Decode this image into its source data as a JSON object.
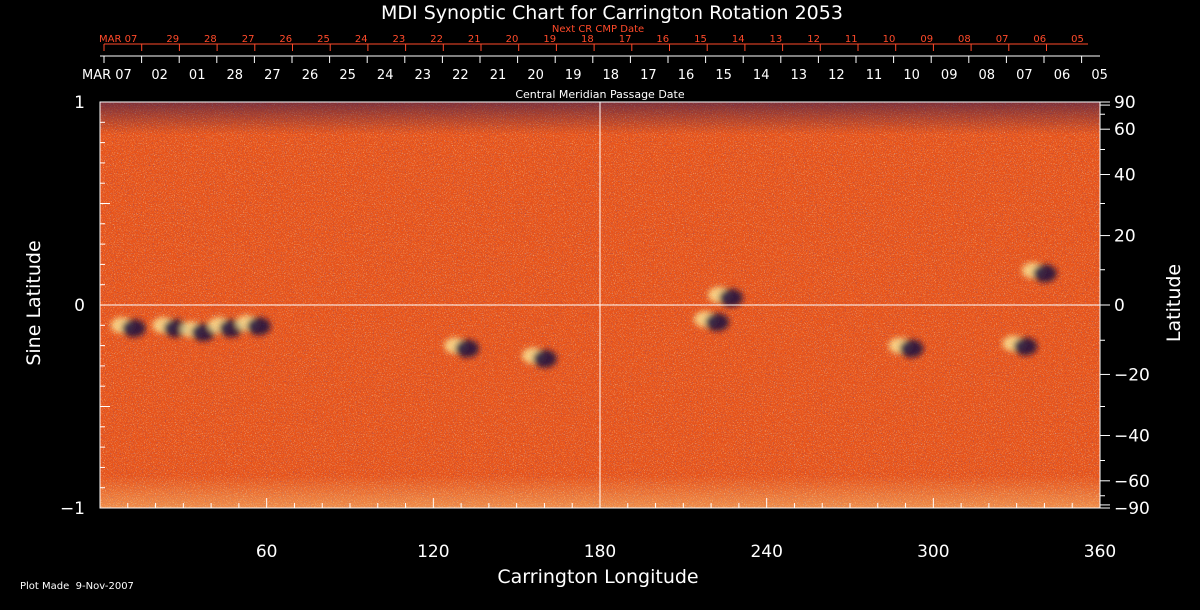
{
  "chart_data": {
    "type": "heatmap",
    "title": "MDI Synoptic Chart for Carrington Rotation 2053",
    "xlabel": "Carrington Longitude",
    "ylabel_left": "Sine Latitude",
    "ylabel_right": "Latitude",
    "xlim": [
      0,
      360
    ],
    "ylim": [
      -1,
      1
    ],
    "x_ticks": [
      60,
      120,
      180,
      240,
      300,
      360
    ],
    "y_ticks_left": [
      {
        "value": 1,
        "label": "1"
      },
      {
        "value": 0,
        "label": "0"
      },
      {
        "value": -1,
        "label": "−1"
      }
    ],
    "y_ticks_right": [
      "90",
      "60",
      "40",
      "20",
      "0",
      "−20",
      "−40",
      "−60",
      "−90"
    ],
    "reference_lines": {
      "equator_sine_latitude": 0,
      "longitude": 180
    },
    "cmp_axis_title": "Central Meridian Passage Date",
    "cmp_dates": [
      "MAR 07",
      "02",
      "01",
      "28",
      "27",
      "26",
      "25",
      "24",
      "23",
      "22",
      "21",
      "20",
      "19",
      "18",
      "17",
      "16",
      "15",
      "14",
      "13",
      "12",
      "11",
      "10",
      "09",
      "08",
      "07",
      "06",
      "05"
    ],
    "next_cr_title": "Next CR CMP Date",
    "next_cr_dates": [
      "MAR 07",
      "29",
      "28",
      "27",
      "26",
      "25",
      "24",
      "23",
      "22",
      "21",
      "20",
      "19",
      "18",
      "17",
      "16",
      "15",
      "14",
      "13",
      "12",
      "11",
      "10",
      "09",
      "08",
      "07",
      "06",
      "05"
    ],
    "active_regions": [
      {
        "longitude": 10,
        "sine_latitude": -0.1
      },
      {
        "longitude": 25,
        "sine_latitude": -0.1
      },
      {
        "longitude": 35,
        "sine_latitude": -0.12
      },
      {
        "longitude": 45,
        "sine_latitude": -0.1
      },
      {
        "longitude": 55,
        "sine_latitude": -0.09
      },
      {
        "longitude": 130,
        "sine_latitude": -0.2
      },
      {
        "longitude": 158,
        "sine_latitude": -0.25
      },
      {
        "longitude": 225,
        "sine_latitude": 0.05
      },
      {
        "longitude": 220,
        "sine_latitude": -0.07
      },
      {
        "longitude": 290,
        "sine_latitude": -0.2
      },
      {
        "longitude": 331,
        "sine_latitude": -0.19
      },
      {
        "longitude": 338,
        "sine_latitude": 0.17
      }
    ],
    "footer": "Plot Made  9-Nov-2007"
  },
  "colors": {
    "background": "#000000",
    "map_base": "#e8541a",
    "negative_polarity": "#1a1040",
    "positive_polarity": "#fff3a0",
    "label_red": "#ff4a2a",
    "text": "#ffffff"
  }
}
